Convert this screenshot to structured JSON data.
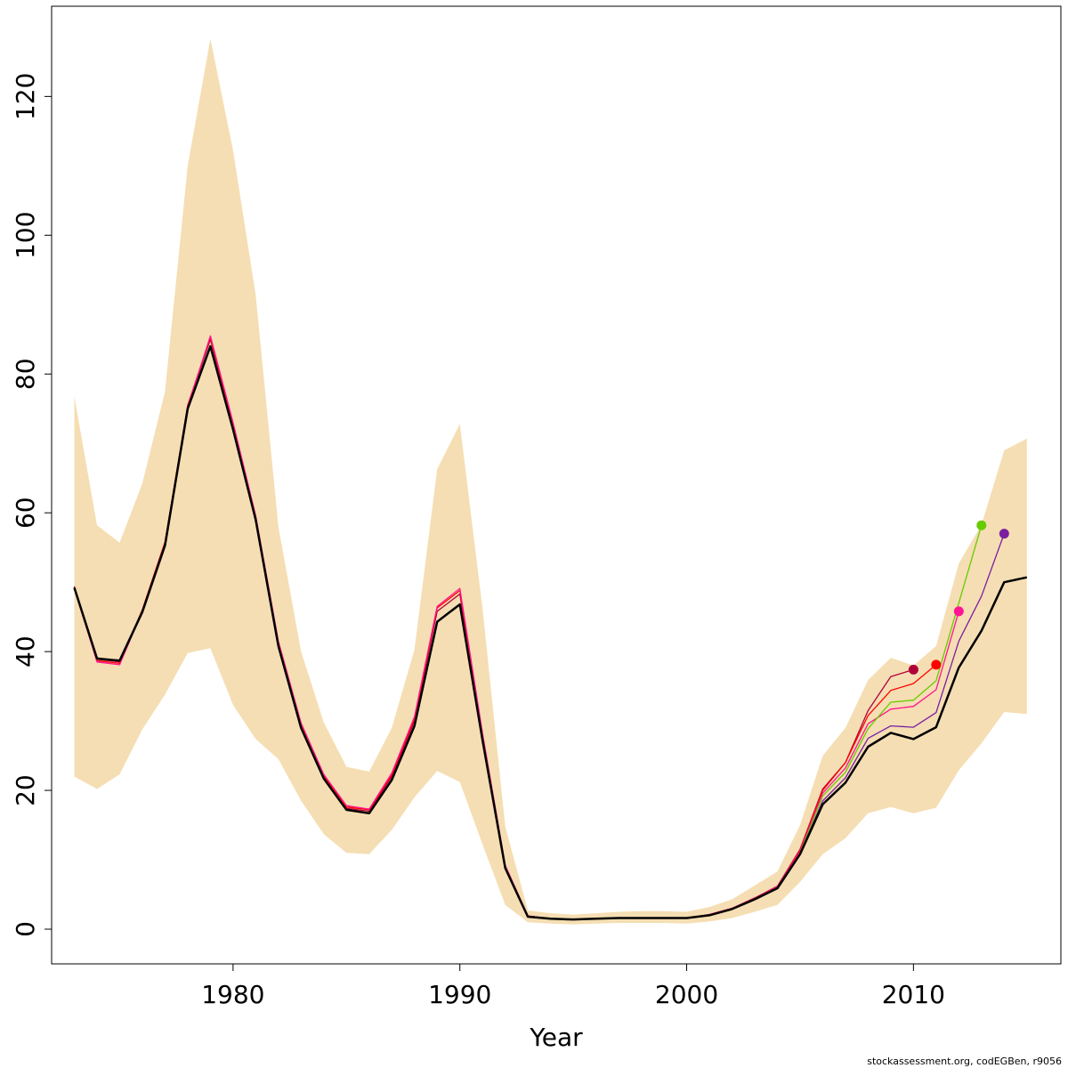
{
  "chart_data": {
    "type": "line",
    "title": "",
    "xlabel": "Year",
    "ylabel": "",
    "xlim": [
      1972,
      2016.5
    ],
    "ylim": [
      -5,
      133
    ],
    "x_ticks": [
      1980,
      1990,
      2000,
      2010
    ],
    "y_ticks": [
      0,
      20,
      40,
      60,
      80,
      100,
      120
    ],
    "grid": false,
    "legend": "none",
    "band_color": "#f5deb3",
    "confidence_band": {
      "x": [
        1973,
        1974,
        1975,
        1976,
        1977,
        1978,
        1979,
        1980,
        1981,
        1982,
        1983,
        1984,
        1985,
        1986,
        1987,
        1988,
        1989,
        1990,
        1991,
        1992,
        1993,
        1994,
        1995,
        1996,
        1997,
        1998,
        1999,
        2000,
        2001,
        2002,
        2003,
        2004,
        2005,
        2006,
        2007,
        2008,
        2009,
        2010,
        2011,
        2012,
        2013,
        2014,
        2015
      ],
      "lower": [
        22,
        20.2,
        22.3,
        28.8,
        33.8,
        39.8,
        40.5,
        32.3,
        27.4,
        24.5,
        18.5,
        13.7,
        11.0,
        10.8,
        14.3,
        19.0,
        22.8,
        21.2,
        12.2,
        3.5,
        1.0,
        0.8,
        0.7,
        0.8,
        0.9,
        0.9,
        0.9,
        0.8,
        1.1,
        1.6,
        2.5,
        3.5,
        6.8,
        10.8,
        13.1,
        16.7,
        17.6,
        16.7,
        17.5,
        22.9,
        26.8,
        31.3,
        31.0
      ],
      "upper": [
        76.8,
        58.2,
        55.7,
        64.2,
        77.5,
        110.0,
        128.3,
        112.2,
        91.4,
        58.0,
        40.0,
        29.8,
        23.4,
        22.7,
        29.0,
        40.3,
        66.3,
        72.8,
        46.2,
        14.8,
        2.7,
        2.3,
        2.1,
        2.3,
        2.5,
        2.6,
        2.6,
        2.5,
        3.2,
        4.3,
        6.3,
        8.3,
        15.0,
        25.0,
        29.0,
        35.9,
        39.1,
        38.0,
        40.8,
        52.7,
        58.3,
        69.0,
        70.7
      ]
    },
    "series": [
      {
        "color": "#000000",
        "width": 2.5,
        "x": [
          1973,
          1974,
          1975,
          1976,
          1977,
          1978,
          1979,
          1980,
          1981,
          1982,
          1983,
          1984,
          1985,
          1986,
          1987,
          1988,
          1989,
          1990,
          1991,
          1992,
          1993,
          1994,
          1995,
          1996,
          1997,
          1998,
          1999,
          2000,
          2001,
          2002,
          2003,
          2004,
          2005,
          2006,
          2007,
          2008,
          2009,
          2010,
          2011,
          2012,
          2013,
          2014,
          2015
        ],
        "values": [
          49.2,
          39.0,
          38.7,
          45.7,
          55.3,
          75.0,
          84.0,
          72.0,
          59.0,
          40.8,
          29.0,
          21.7,
          17.2,
          16.7,
          21.5,
          29.3,
          44.3,
          46.8,
          27.2,
          8.8,
          1.8,
          1.5,
          1.4,
          1.5,
          1.6,
          1.6,
          1.6,
          1.6,
          2.0,
          2.9,
          4.3,
          5.9,
          10.8,
          18.0,
          21.1,
          26.3,
          28.3,
          27.4,
          29.1,
          37.7,
          43.0,
          50.0,
          50.7
        ]
      },
      {
        "color": "#b0003a",
        "width": 1.3,
        "marker": true,
        "x": [
          1973,
          1974,
          1975,
          1976,
          1977,
          1978,
          1979,
          1980,
          1981,
          1982,
          1983,
          1984,
          1985,
          1986,
          1987,
          1988,
          1989,
          1990,
          1991,
          1992,
          1993,
          1994,
          1995,
          1996,
          1997,
          1998,
          1999,
          2000,
          2001,
          2002,
          2003,
          2004,
          2005,
          2006,
          2007,
          2008,
          2009,
          2010
        ],
        "values": [
          49.4,
          38.9,
          38.5,
          46.0,
          55.8,
          75.4,
          85.0,
          72.6,
          59.3,
          41.2,
          29.4,
          22.0,
          17.4,
          17.0,
          22.0,
          30.0,
          45.8,
          48.3,
          27.8,
          9.0,
          1.9,
          1.5,
          1.4,
          1.5,
          1.6,
          1.6,
          1.6,
          1.6,
          2.1,
          3.0,
          4.5,
          6.2,
          11.5,
          20.2,
          24.0,
          31.5,
          36.4,
          37.4
        ]
      },
      {
        "color": "#ff0000",
        "width": 1.3,
        "marker": true,
        "x": [
          1973,
          1974,
          1975,
          1976,
          1977,
          1978,
          1979,
          1980,
          1981,
          1982,
          1983,
          1984,
          1985,
          1986,
          1987,
          1988,
          1989,
          1990,
          1991,
          1992,
          1993,
          1994,
          1995,
          1996,
          1997,
          1998,
          1999,
          2000,
          2001,
          2002,
          2003,
          2004,
          2005,
          2006,
          2007,
          2008,
          2009,
          2010,
          2011
        ],
        "values": [
          49.3,
          38.7,
          38.3,
          46.0,
          55.7,
          75.5,
          85.3,
          72.8,
          59.4,
          41.2,
          29.5,
          22.1,
          17.6,
          17.2,
          22.2,
          30.3,
          46.3,
          48.8,
          28.0,
          9.1,
          1.9,
          1.5,
          1.4,
          1.5,
          1.6,
          1.6,
          1.6,
          1.6,
          2.1,
          3.0,
          4.4,
          6.1,
          11.4,
          20.0,
          24.0,
          30.8,
          34.4,
          35.4,
          38.1
        ]
      },
      {
        "color": "#ff1493",
        "width": 1.3,
        "marker": true,
        "x": [
          1973,
          1974,
          1975,
          1976,
          1977,
          1978,
          1979,
          1980,
          1981,
          1982,
          1983,
          1984,
          1985,
          1986,
          1987,
          1988,
          1989,
          1990,
          1991,
          1992,
          1993,
          1994,
          1995,
          1996,
          1997,
          1998,
          1999,
          2000,
          2001,
          2002,
          2003,
          2004,
          2005,
          2006,
          2007,
          2008,
          2009,
          2010,
          2011,
          2012
        ],
        "values": [
          49.1,
          38.5,
          38.1,
          45.8,
          55.5,
          75.3,
          85.5,
          73.0,
          59.6,
          41.5,
          29.7,
          22.3,
          17.8,
          17.3,
          22.5,
          30.6,
          46.5,
          49.1,
          28.2,
          9.2,
          1.9,
          1.5,
          1.4,
          1.5,
          1.6,
          1.6,
          1.6,
          1.6,
          2.1,
          3.0,
          4.4,
          6.1,
          11.2,
          19.6,
          23.2,
          29.6,
          31.7,
          32.1,
          34.5,
          45.8
        ]
      },
      {
        "color": "#66cc00",
        "width": 1.3,
        "marker": true,
        "x": [
          2005,
          2006,
          2007,
          2008,
          2009,
          2010,
          2011,
          2012,
          2013
        ],
        "values": [
          11.0,
          19.2,
          22.6,
          28.9,
          32.7,
          33.0,
          35.8,
          47.0,
          58.2
        ]
      },
      {
        "color": "#7a1fa2",
        "width": 1.3,
        "marker": true,
        "x": [
          2005,
          2006,
          2007,
          2008,
          2009,
          2010,
          2011,
          2012,
          2013,
          2014
        ],
        "values": [
          10.9,
          18.5,
          21.8,
          27.5,
          29.3,
          29.1,
          31.2,
          41.5,
          48.0,
          57.0
        ]
      }
    ]
  },
  "footer": "stockassessment.org, codEGBen, r9056"
}
